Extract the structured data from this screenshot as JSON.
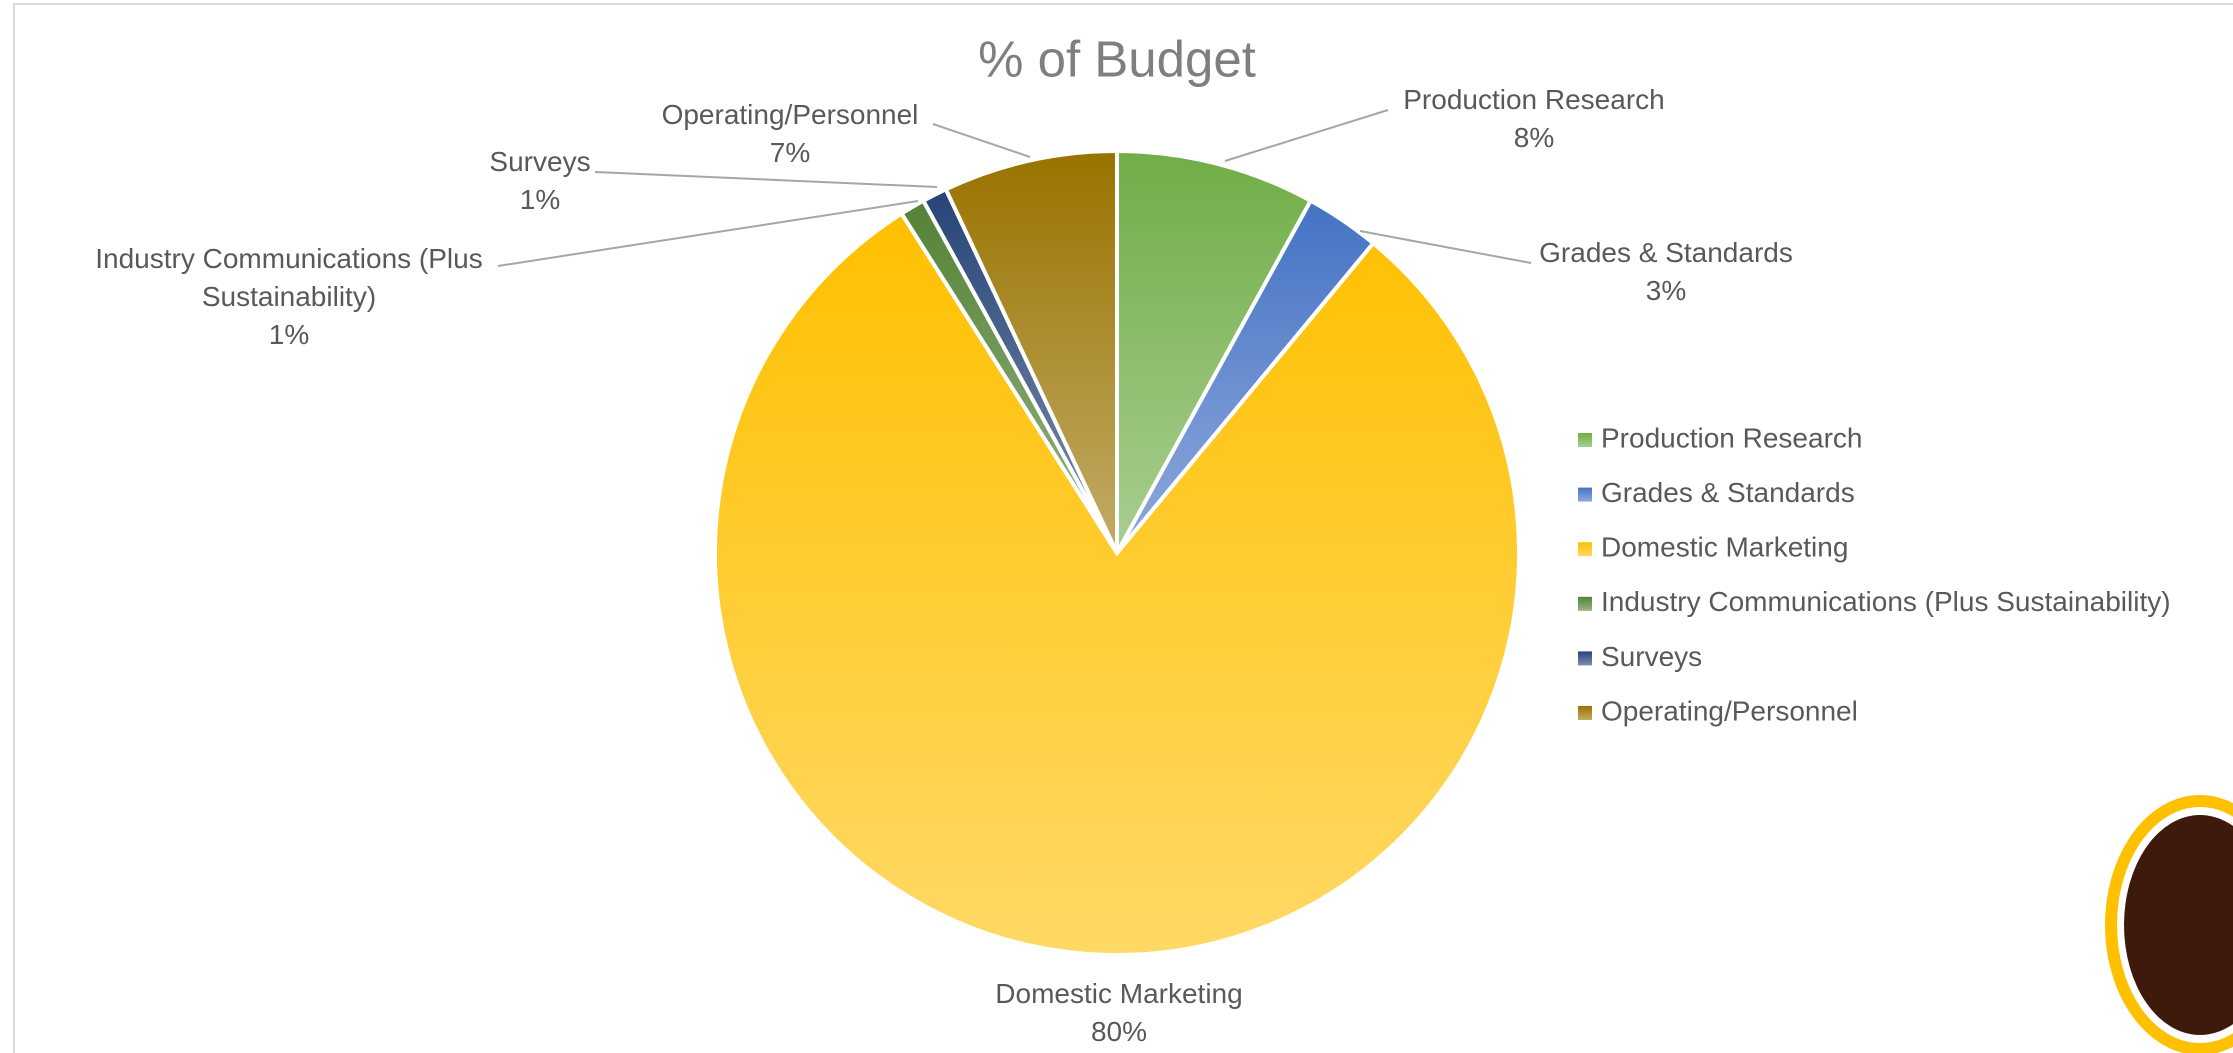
{
  "chart_data": {
    "type": "pie",
    "title": "% of Budget",
    "categories": [
      "Production Research",
      "Grades & Standards",
      "Domestic Marketing",
      "Industry Communications (Plus Sustainability)",
      "Surveys",
      "Operating/Personnel"
    ],
    "values": [
      8,
      3,
      80,
      1,
      1,
      7
    ],
    "value_labels": [
      "8%",
      "3%",
      "80%",
      "1%",
      "1%",
      "7%"
    ],
    "colors": [
      "#70ad47",
      "#4472c4",
      "#ffc000",
      "#548235",
      "#264478",
      "#997300"
    ],
    "legend": "right"
  }
}
